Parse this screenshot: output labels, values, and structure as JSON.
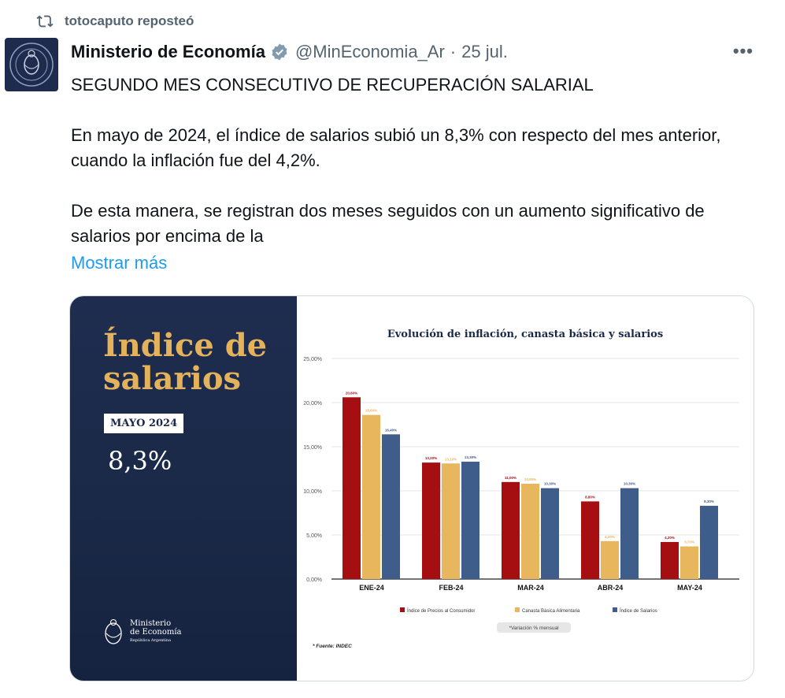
{
  "repost": {
    "text": "totocaputo reposteó",
    "icon": "repost-icon"
  },
  "tweet": {
    "author_name": "Ministerio de Economía",
    "handle": "@MinEconomia_Ar",
    "separator": "·",
    "date": "25 jul.",
    "more_label": "•••",
    "paragraphs": [
      "SEGUNDO MES CONSECUTIVO DE RECUPERACIÓN SALARIAL",
      "En mayo de 2024, el índice de salarios subió un 8,3% con respecto del mes anterior, cuando la inflación fue del 4,2%.",
      "De esta manera, se registran dos meses seguidos con un aumento significativo de salarios por encima de la"
    ],
    "show_more": "Mostrar más",
    "colors": {
      "link": "#1d9bf0",
      "verified": "#829aab",
      "muted": "#536471"
    }
  },
  "media": {
    "card_title_line1": "Índice de",
    "card_title_line2": "salarios",
    "badge": "MAYO 2024",
    "value": "8,3%",
    "logo_line1": "Ministerio",
    "logo_line2": "de Economía",
    "logo_line3": "República Argentina",
    "colors": {
      "panel": "#1e2c4f",
      "title": "#e3b25b"
    }
  },
  "chart_data": {
    "type": "bar",
    "title": "Evolución de inflación, canasta básica y salarios",
    "categories": [
      "ENE-24",
      "FEB-24",
      "MAR-24",
      "ABR-24",
      "MAY-24"
    ],
    "series": [
      {
        "name": "Índice de Precios al Consumidor",
        "color": "#a50f12",
        "values": [
          20.6,
          13.2,
          11.0,
          8.8,
          4.2
        ],
        "labels": [
          "20,60%",
          "13,20%",
          "11,00%",
          "8,80%",
          "4,20%"
        ]
      },
      {
        "name": "Canasta Básica Alimentaria",
        "color": "#e8b65c",
        "values": [
          18.6,
          13.1,
          10.8,
          4.3,
          3.7
        ],
        "labels": [
          "18,60%",
          "13,10%",
          "10,80%",
          "4,30%",
          "3,70%"
        ]
      },
      {
        "name": "Índice de Salarios",
        "color": "#3f5d8a",
        "values": [
          16.4,
          13.3,
          10.3,
          10.3,
          8.3
        ],
        "labels": [
          "16,40%",
          "13,30%",
          "10,30%",
          "10,30%",
          "8,30%"
        ]
      }
    ],
    "y_ticks": [
      "0,00%",
      "5,00%",
      "10,00%",
      "15,00%",
      "20,00%",
      "25,00%"
    ],
    "ylim": [
      0,
      25
    ],
    "grid": true,
    "legend": "bottom",
    "note": "*Variación % mensual",
    "source": "* Fuente: INDEC"
  }
}
